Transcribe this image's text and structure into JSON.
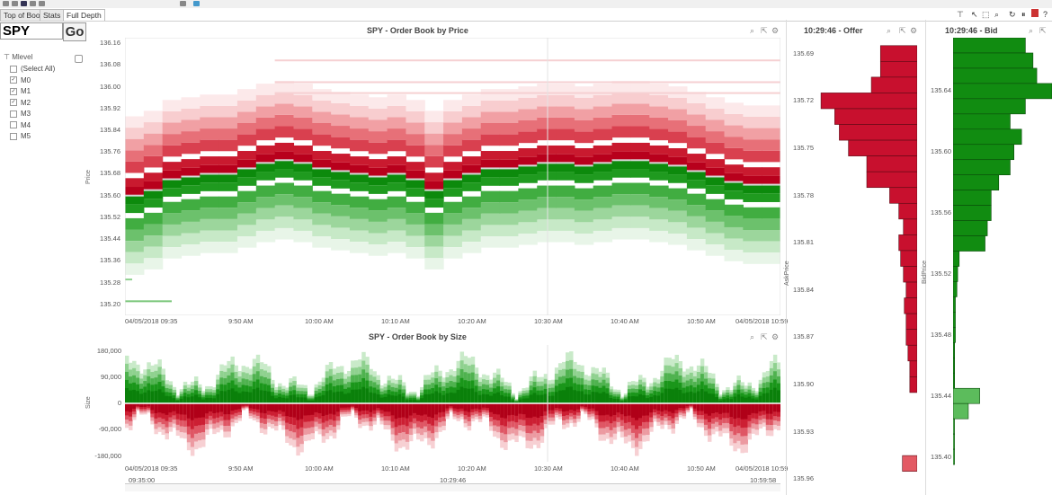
{
  "tabs": [
    {
      "label": "Top of Book",
      "active": false
    },
    {
      "label": "Stats",
      "active": false
    },
    {
      "label": "Full Depth",
      "active": true
    }
  ],
  "ticker": {
    "value": "SPY",
    "go_label": "Go"
  },
  "filter": {
    "title": "Mlevel",
    "items": [
      {
        "label": "(Select All)",
        "checked": false
      },
      {
        "label": "M0",
        "checked": true
      },
      {
        "label": "M1",
        "checked": true
      },
      {
        "label": "M2",
        "checked": true
      },
      {
        "label": "M3",
        "checked": false
      },
      {
        "label": "M4",
        "checked": false
      },
      {
        "label": "M5",
        "checked": false
      }
    ]
  },
  "colors": {
    "offer": "#c8102e",
    "bid": "#118c11"
  },
  "chart_data": [
    {
      "type": "heatmap",
      "title": "SPY - Order Book by Price",
      "ylabel": "Price",
      "yticks": [
        "136.16",
        "136.08",
        "136.00",
        "135.92",
        "135.84",
        "135.76",
        "135.68",
        "135.60",
        "135.52",
        "135.44",
        "135.36",
        "135.28",
        "135.20"
      ],
      "xticks": [
        "04/05/2018 09:35",
        "9:50 AM",
        "10:00 AM",
        "10:10 AM",
        "10:20 AM",
        "10:30 AM",
        "10:40 AM",
        "10:50 AM",
        "04/05/2018 10:59"
      ],
      "ylim": [
        135.16,
        136.18
      ],
      "mid_price": [
        135.6,
        135.62,
        135.66,
        135.67,
        135.68,
        135.68,
        135.7,
        135.72,
        135.73,
        135.72,
        135.7,
        135.69,
        135.68,
        135.67,
        135.68,
        135.66,
        135.62,
        135.66,
        135.68,
        135.7,
        135.7,
        135.71,
        135.72,
        135.72,
        135.71,
        135.72,
        135.73,
        135.73,
        135.72,
        135.71,
        135.69,
        135.67,
        135.65,
        135.64,
        135.64
      ]
    },
    {
      "type": "area",
      "title": "SPY - Order Book by Size",
      "ylabel": "Size",
      "yticks": [
        "180,000",
        "90,000",
        "0",
        "-90,000",
        "-180,000"
      ],
      "xticks": [
        "04/05/2018 09:35",
        "9:50 AM",
        "10:00 AM",
        "10:10 AM",
        "10:20 AM",
        "10:30 AM",
        "10:40 AM",
        "10:50 AM",
        "04/05/2018 10:59"
      ],
      "ylim": [
        -200000,
        200000
      ],
      "brush_labels": [
        "09:35:00",
        "10:29:46",
        "10:59:58"
      ]
    },
    {
      "type": "bar",
      "title": "10:29:46 - Offer",
      "ylabel": "AskPrice",
      "yticks": [
        "135.69",
        "135.72",
        "135.75",
        "135.78",
        "135.81",
        "135.84",
        "135.87",
        "135.90",
        "135.93",
        "135.96"
      ],
      "ylim": [
        135.68,
        135.97
      ],
      "levels": [
        135.69,
        135.7,
        135.71,
        135.72,
        135.73,
        135.74,
        135.75,
        135.76,
        135.77,
        135.78,
        135.79,
        135.8,
        135.81,
        135.82,
        135.83,
        135.84,
        135.85,
        135.86,
        135.87,
        135.88,
        135.89,
        135.9,
        135.95
      ],
      "values": [
        40,
        40,
        50,
        105,
        90,
        85,
        75,
        55,
        55,
        30,
        20,
        15,
        20,
        18,
        15,
        12,
        14,
        12,
        12,
        10,
        8,
        8,
        16
      ]
    },
    {
      "type": "bar",
      "title": "10:29:46 - Bid",
      "ylabel": "BidPrice",
      "yticks": [
        "135.64",
        "135.60",
        "135.56",
        "135.52",
        "135.48",
        "135.44",
        "135.40"
      ],
      "ylim": [
        135.375,
        135.675
      ],
      "levels": [
        135.67,
        135.66,
        135.65,
        135.64,
        135.63,
        135.62,
        135.61,
        135.6,
        135.59,
        135.58,
        135.57,
        135.56,
        135.55,
        135.54,
        135.53,
        135.52,
        135.51,
        135.5,
        135.49,
        135.48,
        135.47,
        135.46,
        135.45,
        135.44,
        135.43,
        135.42,
        135.41,
        135.4
      ],
      "values": [
        95,
        105,
        110,
        130,
        95,
        75,
        90,
        80,
        75,
        60,
        50,
        50,
        45,
        42,
        8,
        6,
        5,
        3,
        3,
        3,
        2,
        2,
        2,
        35,
        20,
        2,
        2,
        2
      ]
    }
  ]
}
